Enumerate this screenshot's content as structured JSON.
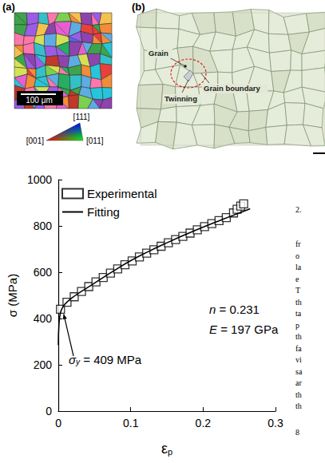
{
  "panel_a": {
    "letter": "(a)",
    "scale_bar": "100 μm",
    "ipf_legend": {
      "top": "[111]",
      "left": "[001]",
      "right": "[011]"
    }
  },
  "panel_b": {
    "letter": "(b)",
    "labels": {
      "grain": "Grain",
      "boundary": "Grain boundary",
      "twin": "Twinning"
    }
  },
  "chart_data": {
    "type": "scatter",
    "xlabel": {
      "symbol": "ε",
      "sub": "p"
    },
    "ylabel": "σ (MPa)",
    "xlim": [
      0,
      0.3
    ],
    "xticks": [
      0,
      0.1,
      0.2,
      0.3
    ],
    "ylim": [
      0,
      1000
    ],
    "yticks": [
      0,
      200,
      400,
      600,
      800,
      1000
    ],
    "grid": false,
    "legend": "upper left",
    "series": [
      {
        "name": "Experimental",
        "type": "scatter",
        "marker": "square",
        "color": "#000000",
        "x": [
          0.003,
          0.012,
          0.022,
          0.032,
          0.042,
          0.052,
          0.062,
          0.072,
          0.082,
          0.092,
          0.102,
          0.112,
          0.122,
          0.132,
          0.142,
          0.152,
          0.162,
          0.172,
          0.182,
          0.192,
          0.202,
          0.212,
          0.222,
          0.232,
          0.242,
          0.247,
          0.252,
          0.256
        ],
        "values": [
          440,
          470,
          494,
          517,
          538,
          558,
          577,
          596,
          614,
          632,
          649,
          666,
          682,
          697,
          712,
          727,
          741,
          755,
          769,
          783,
          797,
          810,
          823,
          836,
          856,
          872,
          886,
          895
        ]
      },
      {
        "name": "Fitting",
        "type": "line",
        "line_style": "solid",
        "color": "#000000",
        "x": [
          0,
          0.001,
          0.003,
          0.006,
          0.01,
          0.02,
          0.03,
          0.05,
          0.075,
          0.1,
          0.125,
          0.15,
          0.175,
          0.2,
          0.225,
          0.25,
          0.265
        ],
        "values": [
          285,
          380,
          425,
          448,
          465,
          492,
          513,
          553,
          603,
          650,
          690,
          727,
          762,
          795,
          826,
          856,
          874
        ]
      }
    ],
    "annotations": [
      {
        "symbol": "n",
        "text": " = 0.231"
      },
      {
        "symbol": "E",
        "text": " = 197 GPa"
      },
      {
        "symbol": "σ",
        "sub": "y",
        "text": " = 409 MPa"
      }
    ]
  },
  "side_text": {
    "heading": "2.",
    "lines": [
      "fr",
      "o",
      "la",
      "e",
      "T",
      "th",
      "ta",
      "p",
      "th",
      "fa",
      "vi",
      "sa",
      "ar",
      "th",
      "th"
    ],
    "page": "8"
  }
}
